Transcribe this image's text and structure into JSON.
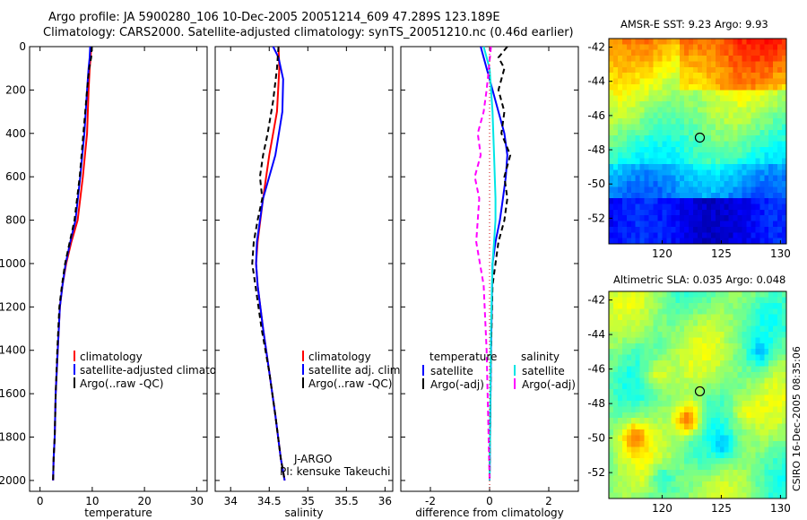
{
  "header": {
    "line1": "Argo profile: JA 5900280_106 10-Dec-2005 20051214_609 47.289S 123.189E",
    "line2": "Climatology: CARS2000. Satellite-adjusted climatology: synTS_20051210.nc (0.46d earlier)"
  },
  "credit": "CSIRO 16-Dec-2005 08:35:06",
  "colors": {
    "climatology": "#ff0000",
    "satellite": "#0000ff",
    "argo": "#000000",
    "salinity_satellite": "#00e5e5",
    "salinity_argo": "#ff00ff"
  },
  "chart_data": [
    {
      "type": "line",
      "id": "temperature",
      "xlabel": "temperature",
      "xlim": [
        -2,
        32
      ],
      "xticks": [
        0,
        10,
        20,
        30
      ],
      "ylim": [
        0,
        2050
      ],
      "yticks": [
        0,
        200,
        400,
        600,
        800,
        1000,
        1200,
        1400,
        1600,
        1800,
        2000
      ],
      "y_reversed": true,
      "legend": [
        "climatology",
        "satellite-adjusted climatology",
        "Argo(..raw -QC)"
      ],
      "series": [
        {
          "name": "climatology",
          "color": "#ff0000",
          "style": "solid",
          "x": [
            9.8,
            9.7,
            9.5,
            9.3,
            9.0,
            8.2,
            7.2,
            6.0,
            5.0,
            4.3,
            3.8,
            3.4,
            3.0,
            2.8,
            2.6,
            2.5
          ],
          "y": [
            0,
            50,
            100,
            200,
            400,
            600,
            800,
            900,
            1000,
            1100,
            1200,
            1400,
            1600,
            1800,
            1900,
            2000
          ]
        },
        {
          "name": "satellite-adjusted climatology",
          "color": "#0000ff",
          "style": "solid",
          "x": [
            9.6,
            9.5,
            9.3,
            9.0,
            8.5,
            7.7,
            6.8,
            5.8,
            4.9,
            4.3,
            3.8,
            3.4,
            3.0,
            2.8,
            2.6,
            2.5
          ],
          "y": [
            0,
            50,
            100,
            200,
            400,
            600,
            800,
            900,
            1000,
            1100,
            1200,
            1400,
            1600,
            1800,
            1900,
            2000
          ]
        },
        {
          "name": "Argo(..raw -QC)",
          "color": "#000000",
          "style": "dashed",
          "x": [
            9.9,
            9.8,
            9.4,
            9.0,
            8.3,
            7.6,
            6.6,
            5.7,
            4.8,
            4.2,
            3.7,
            3.3,
            3.0,
            2.8,
            2.6,
            2.5
          ],
          "y": [
            0,
            50,
            100,
            200,
            400,
            600,
            800,
            900,
            1000,
            1100,
            1200,
            1400,
            1600,
            1800,
            1900,
            2000
          ]
        }
      ]
    },
    {
      "type": "line",
      "id": "salinity",
      "xlabel": "salinity",
      "xlim": [
        33.8,
        36.1
      ],
      "xticks": [
        34,
        34.5,
        35,
        35.5,
        36
      ],
      "ylim": [
        0,
        2050
      ],
      "y_reversed": true,
      "legend": [
        "climatology",
        "satellite adj. clim.",
        "Argo(..raw -QC)"
      ],
      "annotations": [
        "J-ARGO",
        "PI: kensuke Takeuchi"
      ],
      "series": [
        {
          "name": "climatology",
          "color": "#ff0000",
          "style": "solid",
          "x": [
            34.62,
            34.63,
            34.6,
            34.5,
            34.42,
            34.35,
            34.33,
            34.35,
            34.42,
            34.5,
            34.58,
            34.65,
            34.7
          ],
          "y": [
            0,
            100,
            300,
            500,
            700,
            900,
            1000,
            1100,
            1300,
            1500,
            1700,
            1900,
            2000
          ]
        },
        {
          "name": "satellite adj. clim.",
          "color": "#0000ff",
          "style": "solid",
          "x": [
            34.55,
            34.62,
            34.68,
            34.67,
            34.58,
            34.42,
            34.34,
            34.33,
            34.35,
            34.42,
            34.5,
            34.58,
            34.65,
            34.7
          ],
          "y": [
            0,
            50,
            150,
            300,
            500,
            700,
            900,
            1000,
            1100,
            1300,
            1500,
            1700,
            1900,
            2000
          ]
        },
        {
          "name": "Argo(..raw -QC)",
          "color": "#000000",
          "style": "dashed",
          "x": [
            34.62,
            34.6,
            34.55,
            34.48,
            34.42,
            34.38,
            34.41,
            34.35,
            34.3,
            34.28,
            34.32,
            34.4,
            34.5,
            34.58,
            34.65,
            34.7
          ],
          "y": [
            0,
            100,
            250,
            400,
            500,
            600,
            700,
            800,
            900,
            1000,
            1100,
            1300,
            1500,
            1700,
            1900,
            2000
          ]
        }
      ]
    },
    {
      "type": "line",
      "id": "difference",
      "xlabel": "difference from climatology",
      "xlim": [
        -3,
        3
      ],
      "xticks": [
        -2,
        0,
        2
      ],
      "ylim": [
        0,
        2050
      ],
      "y_reversed": true,
      "legend_left_title": "temperature",
      "legend_right_title": "salinity",
      "legend_left": [
        "satellite",
        "Argo(-adj)"
      ],
      "legend_right": [
        "satellite",
        "Argo(-adj)"
      ],
      "series": [
        {
          "name": "temperature satellite",
          "color": "#0000ff",
          "style": "solid",
          "x": [
            -0.3,
            -0.1,
            0.1,
            0.3,
            0.5,
            0.6,
            0.55,
            0.45,
            0.35,
            0.2,
            0.1,
            0.05,
            0.0
          ],
          "y": [
            0,
            100,
            200,
            300,
            400,
            500,
            600,
            700,
            800,
            900,
            1000,
            1400,
            2000
          ]
        },
        {
          "name": "temperature Argo(-adj)",
          "color": "#000000",
          "style": "dashed",
          "x": [
            0.6,
            0.3,
            0.5,
            0.3,
            0.5,
            0.4,
            0.7,
            0.5,
            0.6,
            0.5,
            0.3,
            0.2,
            0.1,
            0.05,
            0.0
          ],
          "y": [
            0,
            50,
            100,
            200,
            300,
            400,
            500,
            600,
            700,
            800,
            900,
            1000,
            1100,
            1400,
            2000
          ]
        },
        {
          "name": "salinity satellite",
          "color": "#00e5e5",
          "style": "solid",
          "x": [
            -0.2,
            0.0,
            0.1,
            0.15,
            0.2,
            0.2,
            0.15,
            0.1,
            0.05,
            0.0
          ],
          "y": [
            0,
            100,
            300,
            500,
            700,
            800,
            900,
            1000,
            1300,
            2000
          ]
        },
        {
          "name": "salinity Argo(-adj)",
          "color": "#ff00ff",
          "style": "dashed",
          "x": [
            0.05,
            -0.1,
            -0.2,
            -0.4,
            -0.3,
            -0.5,
            -0.35,
            -0.45,
            -0.2,
            -0.1,
            0.0
          ],
          "y": [
            0,
            200,
            300,
            400,
            500,
            600,
            700,
            900,
            1100,
            1400,
            2000
          ]
        }
      ]
    },
    {
      "type": "heatmap",
      "id": "sst_map",
      "title": "AMSR-E SST: 9.23 Argo: 9.93",
      "xlim": [
        115.5,
        130.5
      ],
      "ylim": [
        -53.5,
        -41.5
      ],
      "xticks": [
        120,
        125,
        130
      ],
      "yticks": [
        -42,
        -44,
        -46,
        -48,
        -50,
        -52
      ],
      "marker": {
        "lon": 123.189,
        "lat": -47.289
      }
    },
    {
      "type": "heatmap",
      "id": "sla_map",
      "title": "Altimetric SLA: 0.035 Argo: 0.048",
      "xlim": [
        115.5,
        130.5
      ],
      "ylim": [
        -53.5,
        -41.5
      ],
      "xticks": [
        120,
        125,
        130
      ],
      "yticks": [
        -42,
        -44,
        -46,
        -48,
        -50,
        -52
      ],
      "marker": {
        "lon": 123.189,
        "lat": -47.289
      }
    }
  ]
}
